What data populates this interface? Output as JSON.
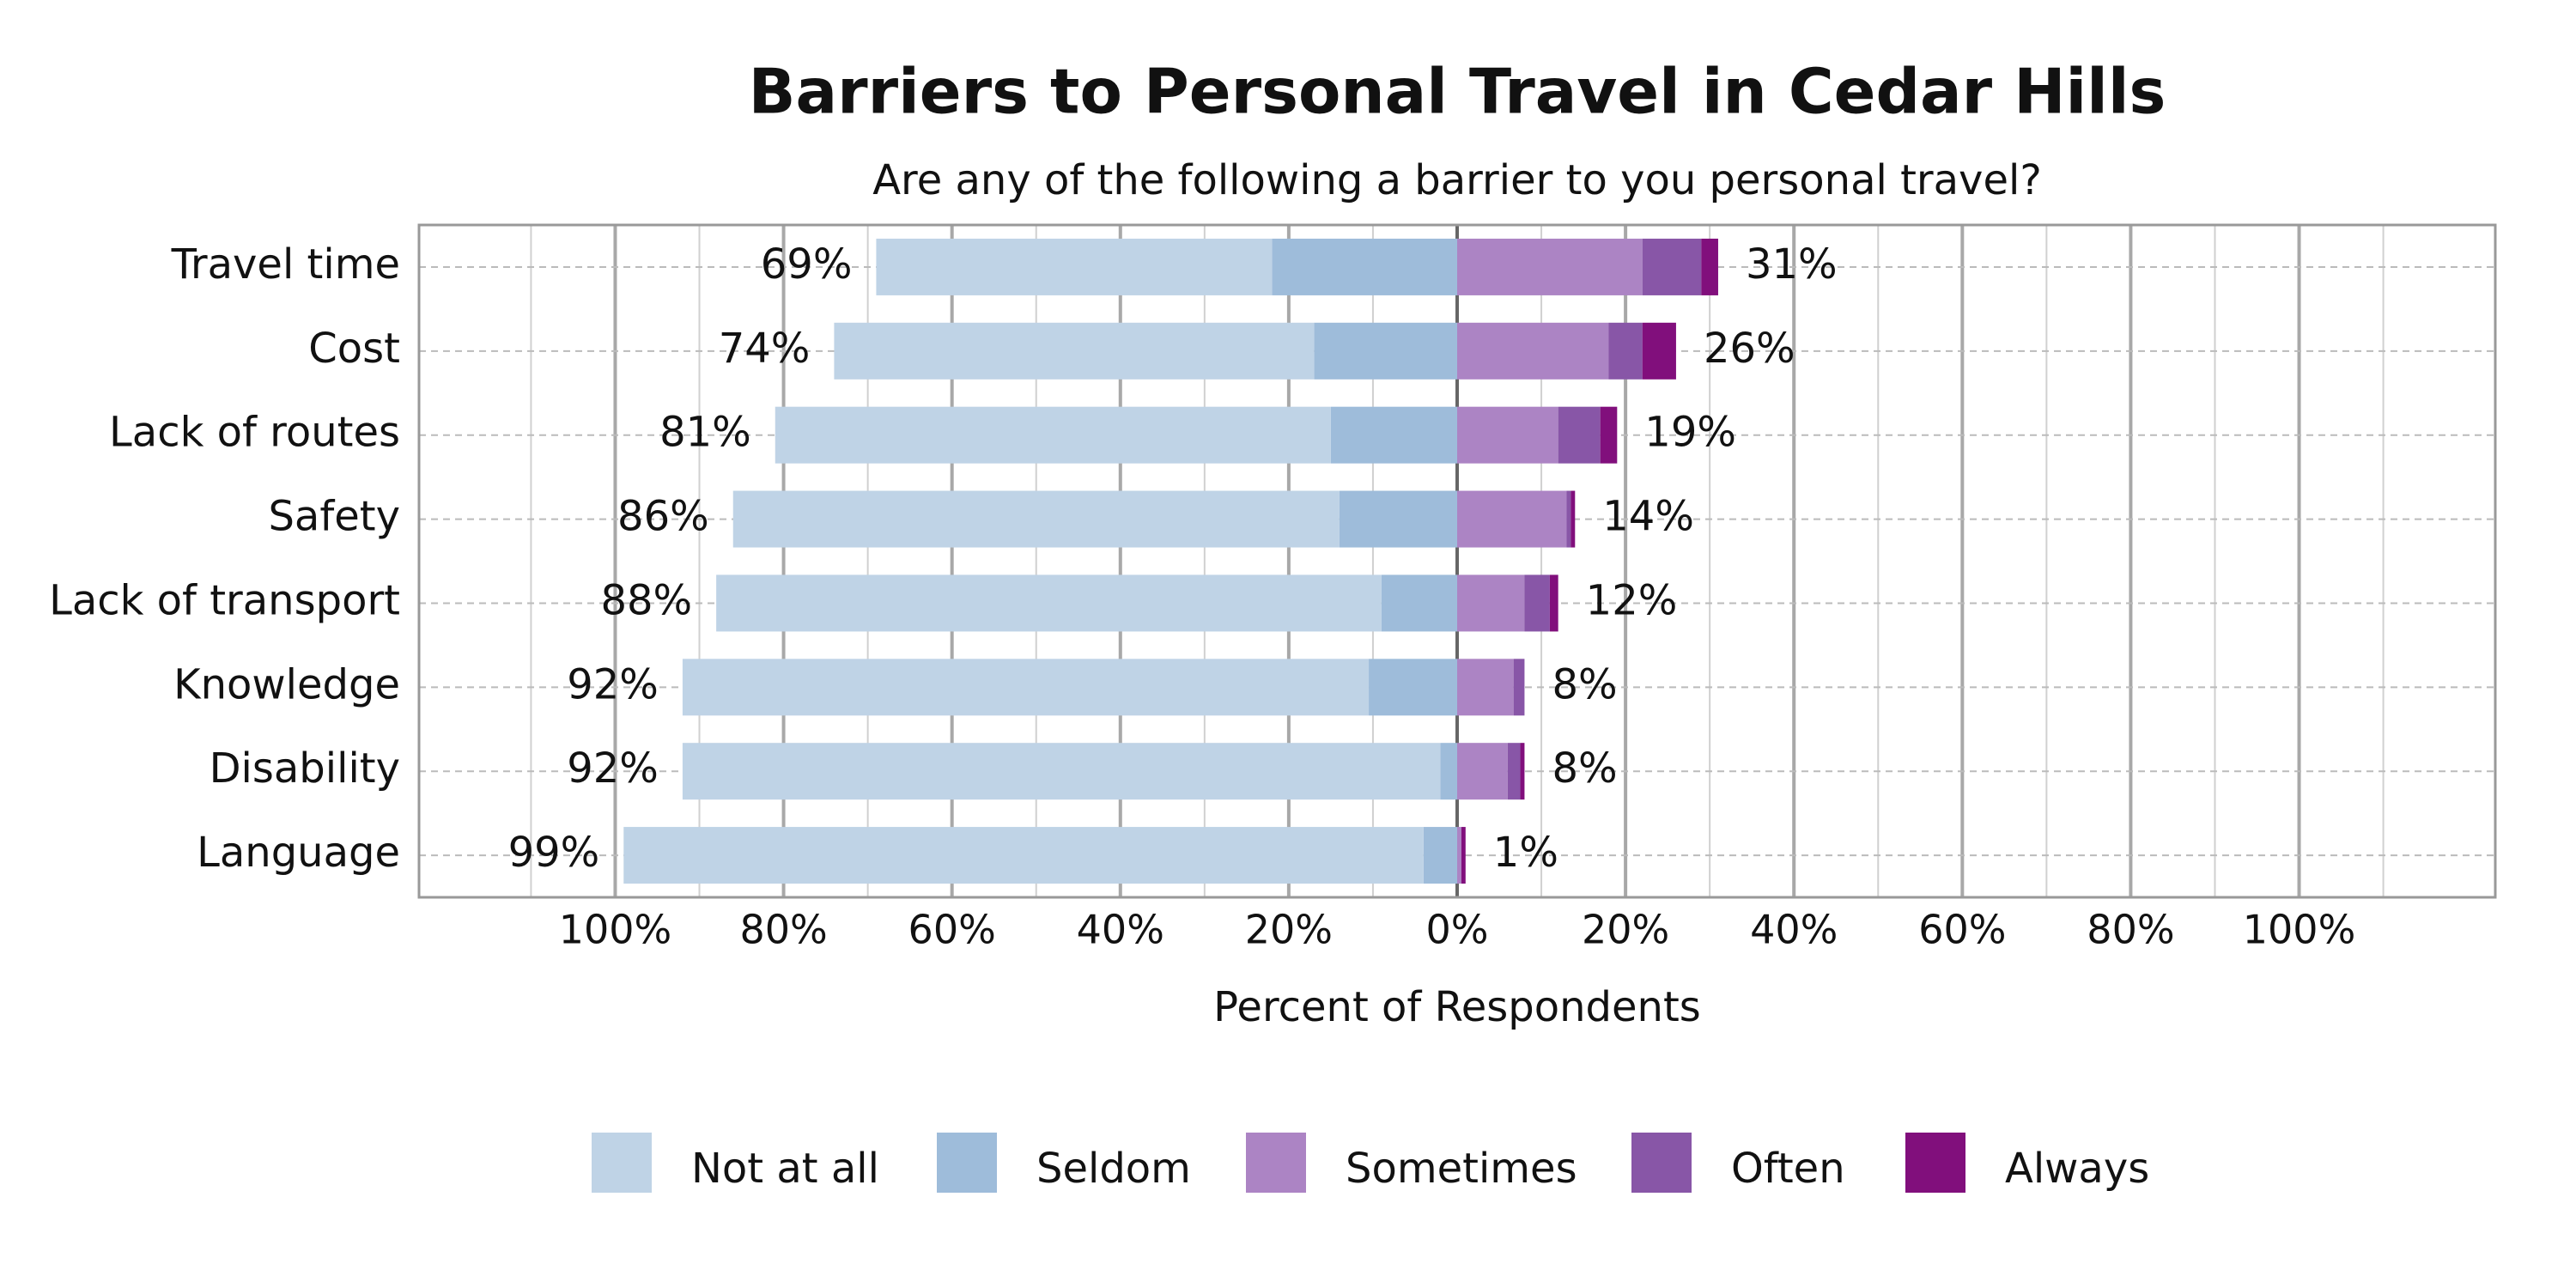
{
  "chart_data": {
    "type": "diverging_bar",
    "title": "Barriers to Personal Travel in Cedar Hills",
    "subtitle": "Are any of the following a barrier to you personal travel?",
    "x_label": "Percent of Respondents",
    "categories": [
      "Travel time",
      "Cost",
      "Lack of routes",
      "Safety",
      "Lack of transport",
      "Knowledge",
      "Disability",
      "Language"
    ],
    "series": [
      {
        "name": "Not at all",
        "color": "#bfd3e6",
        "side": "left",
        "values": [
          47,
          57,
          66,
          72,
          79,
          81.5,
          90,
          95
        ]
      },
      {
        "name": "Seldom",
        "color": "#9ebcda",
        "side": "left",
        "values": [
          22,
          17,
          15,
          14,
          9,
          10.5,
          2,
          4
        ]
      },
      {
        "name": "Sometimes",
        "color": "#ac84c4",
        "side": "right",
        "values": [
          22,
          18,
          12,
          13,
          8,
          6.7,
          6,
          0.5
        ]
      },
      {
        "name": "Often",
        "color": "#8856a7",
        "side": "right",
        "values": [
          7,
          4,
          5,
          0.5,
          3,
          1.3,
          1.5,
          0
        ]
      },
      {
        "name": "Always",
        "color": "#810f7c",
        "side": "right",
        "values": [
          2,
          4,
          2,
          0.5,
          1,
          0,
          0.5,
          0.5
        ]
      }
    ],
    "totals_left": [
      69,
      74,
      81,
      86,
      88,
      92,
      92,
      99
    ],
    "totals_left_labels": [
      "69%",
      "74%",
      "81%",
      "86%",
      "88%",
      "92%",
      "92%",
      "99%"
    ],
    "totals_right": [
      31,
      26,
      19,
      14,
      12,
      8,
      8,
      1
    ],
    "totals_right_labels": [
      "31%",
      "26%",
      "19%",
      "14%",
      "12%",
      "8%",
      "8%",
      "1%"
    ],
    "xlim": [
      -123.3,
      123.3
    ],
    "xticks": [
      {
        "value": -100,
        "label": "100%"
      },
      {
        "value": -80,
        "label": "80%"
      },
      {
        "value": -60,
        "label": "60%"
      },
      {
        "value": -40,
        "label": "40%"
      },
      {
        "value": -20,
        "label": "20%"
      },
      {
        "value": 0,
        "label": "0%"
      },
      {
        "value": 20,
        "label": "20%"
      },
      {
        "value": 40,
        "label": "40%"
      },
      {
        "value": 60,
        "label": "60%"
      },
      {
        "value": 80,
        "label": "80%"
      },
      {
        "value": 100,
        "label": "100%"
      }
    ],
    "x_minor_ticks": [
      -110,
      -90,
      -70,
      -50,
      -30,
      -10,
      10,
      30,
      50,
      70,
      90,
      110
    ],
    "grid": true,
    "legend": "bottom"
  }
}
